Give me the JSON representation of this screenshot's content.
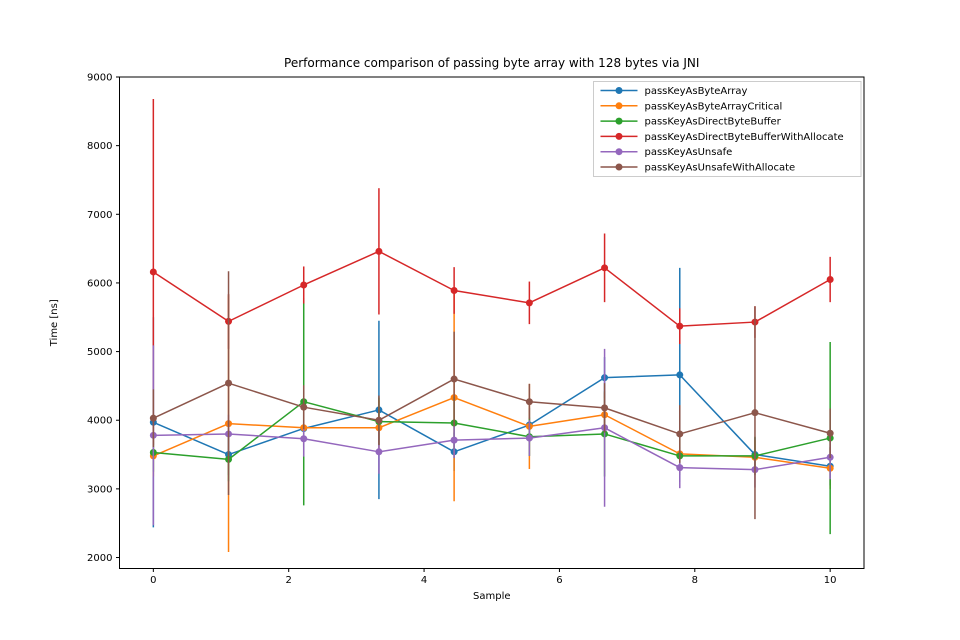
{
  "figure": {
    "title": "Performance comparison of passing byte array with 128 bytes via JNI",
    "xlabel": "Sample",
    "ylabel": "Time [ns]"
  },
  "chart_data": {
    "type": "line",
    "title": "Performance comparison of passing byte array with 128 bytes via JNI",
    "xlabel": "Sample",
    "ylabel": "Time [ns]",
    "xlim": [
      -0.5,
      10.5
    ],
    "ylim": [
      1840,
      9000
    ],
    "x_ticks": [
      0,
      2,
      4,
      6,
      8,
      10
    ],
    "y_ticks": [
      2000,
      3000,
      4000,
      5000,
      6000,
      7000,
      8000,
      9000
    ],
    "grid": false,
    "legend_position": "upper right",
    "marker": "circle",
    "error_bars": true,
    "x": [
      0,
      1.111,
      2.222,
      3.333,
      4.444,
      5.556,
      6.667,
      7.778,
      8.889,
      10
    ],
    "series": [
      {
        "name": "passKeyAsByteArray",
        "color": "#1f77b4",
        "values": [
          3970,
          3500,
          3880,
          4150,
          3540,
          3930,
          4620,
          4660,
          3500,
          3330
        ],
        "yerr": [
          1530,
          300,
          250,
          1300,
          280,
          250,
          300,
          1560,
          250,
          280
        ]
      },
      {
        "name": "passKeyAsByteArrayCritical",
        "color": "#ff7f0e",
        "values": [
          3480,
          3950,
          3890,
          3890,
          4330,
          3910,
          4080,
          3510,
          3460,
          3300
        ],
        "yerr": [
          300,
          1870,
          280,
          400,
          1510,
          620,
          320,
          280,
          250,
          300
        ]
      },
      {
        "name": "passKeyAsDirectByteBuffer",
        "color": "#2ca02c",
        "values": [
          3530,
          3430,
          4270,
          3980,
          3960,
          3760,
          3800,
          3480,
          3480,
          3740
        ],
        "yerr": [
          280,
          320,
          1510,
          350,
          380,
          280,
          620,
          280,
          280,
          1400
        ]
      },
      {
        "name": "passKeyAsDirectByteBufferWithAllocate",
        "color": "#d62728",
        "values": [
          6160,
          5440,
          5970,
          6460,
          5890,
          5710,
          6220,
          5370,
          5430,
          6050
        ],
        "yerr": [
          2520,
          400,
          270,
          920,
          340,
          310,
          500,
          260,
          230,
          330
        ]
      },
      {
        "name": "passKeyAsUnsafe",
        "color": "#9467bd",
        "values": [
          3780,
          3800,
          3730,
          3540,
          3710,
          3740,
          3890,
          3310,
          3280,
          3460
        ],
        "yerr": [
          1310,
          280,
          260,
          320,
          260,
          260,
          1150,
          300,
          260,
          320
        ]
      },
      {
        "name": "passKeyAsUnsafeWithAllocate",
        "color": "#8c564b",
        "values": [
          4030,
          4540,
          4190,
          4000,
          4600,
          4270,
          4180,
          3800,
          4110,
          3810
        ],
        "yerr": [
          420,
          1630,
          320,
          360,
          690,
          260,
          360,
          420,
          1550,
          360
        ]
      }
    ]
  }
}
